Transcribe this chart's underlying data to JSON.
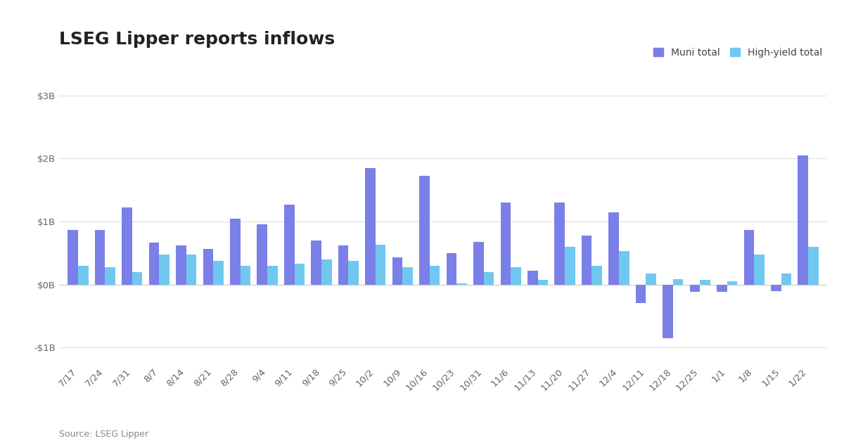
{
  "title": "LSEG Lipper reports inflows",
  "source": "Source: LSEG Lipper",
  "legend_labels": [
    "Muni total",
    "High-yield total"
  ],
  "muni_color": "#7b7fe8",
  "hy_color": "#70c8f0",
  "background_color": "#ffffff",
  "ylim": [
    -1.25,
    3.25
  ],
  "yticks": [
    -1,
    0,
    1,
    2,
    3
  ],
  "ytick_labels": [
    "-$1B",
    "$0B",
    "$1B",
    "$2B",
    "$3B"
  ],
  "categories": [
    "7/17",
    "7/24",
    "7/31",
    "8/7",
    "8/14",
    "8/21",
    "8/28",
    "9/4",
    "9/11",
    "9/18",
    "9/25",
    "10/2",
    "10/9",
    "10/16",
    "10/23",
    "10/31",
    "11/6",
    "11/13",
    "11/20",
    "11/27",
    "12/4",
    "12/11",
    "12/18",
    "12/25",
    "1/1",
    "1/8",
    "1/15",
    "1/22"
  ],
  "muni_values": [
    0.87,
    0.87,
    1.22,
    0.67,
    0.62,
    0.57,
    1.05,
    0.96,
    1.27,
    0.7,
    0.62,
    1.85,
    0.43,
    1.72,
    0.5,
    0.68,
    1.3,
    0.22,
    1.3,
    0.78,
    1.15,
    -0.3,
    -0.85,
    -0.12,
    -0.12,
    0.87,
    -0.1,
    2.05
  ],
  "hy_values": [
    0.3,
    0.27,
    0.2,
    0.47,
    0.47,
    0.37,
    0.3,
    0.3,
    0.33,
    0.4,
    0.37,
    0.63,
    0.27,
    0.3,
    0.02,
    0.2,
    0.27,
    0.07,
    0.6,
    0.3,
    0.53,
    0.17,
    0.08,
    0.07,
    0.05,
    0.47,
    0.17,
    0.6
  ],
  "title_fontsize": 18,
  "label_fontsize": 10,
  "tick_fontsize": 9.5,
  "bar_width": 0.38
}
